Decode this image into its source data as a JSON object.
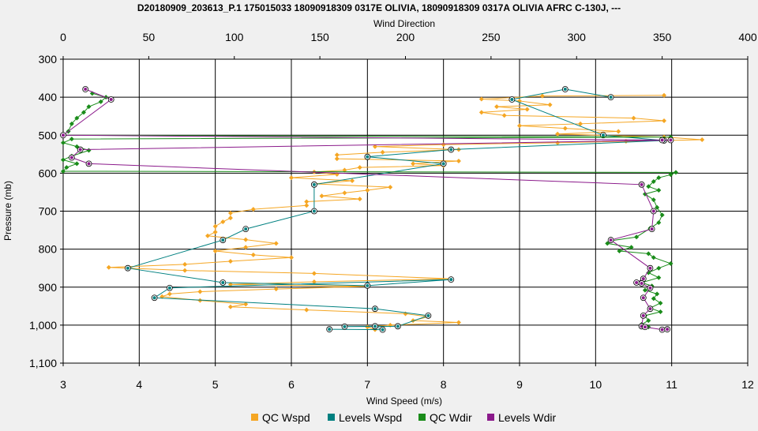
{
  "chart_data": {
    "type": "line",
    "title": "D20180909_203613_P.1 175015033 18090918309 0317E OLIVIA, 18090918309 0317A OLIVIA AFRC C-130J, ---",
    "x_top_label": "Wind Direction",
    "x_bottom_label": "Wind Speed (m/s)",
    "y_label": "Pressure (mb)",
    "x_top_range": [
      0,
      400
    ],
    "x_bottom_range": [
      3,
      12
    ],
    "y_range": [
      300,
      1100
    ],
    "y_inverted": true,
    "grid": true,
    "legend_position": "bottom",
    "x_top_ticks": [
      "0",
      "50",
      "100",
      "150",
      "200",
      "250",
      "300",
      "350",
      "400"
    ],
    "x_bottom_ticks": [
      "3",
      "4",
      "5",
      "6",
      "7",
      "8",
      "9",
      "10",
      "11",
      "12"
    ],
    "y_ticks": [
      "300",
      "400",
      "500",
      "600",
      "700",
      "800",
      "900",
      "1,000",
      "1,100"
    ],
    "series": [
      {
        "name": "QC Wspd",
        "color": "#f5a623",
        "axis": "bottom",
        "marker": "diamond",
        "points": [
          [
            10.9,
            395
          ],
          [
            9.3,
            397
          ],
          [
            8.5,
            405
          ],
          [
            9.0,
            410
          ],
          [
            9.4,
            420
          ],
          [
            8.7,
            425
          ],
          [
            9.1,
            432
          ],
          [
            8.5,
            440
          ],
          [
            8.8,
            448
          ],
          [
            10.5,
            455
          ],
          [
            10.9,
            462
          ],
          [
            9.8,
            470
          ],
          [
            9.0,
            475
          ],
          [
            9.6,
            482
          ],
          [
            10.3,
            490
          ],
          [
            9.5,
            497
          ],
          [
            10.9,
            505
          ],
          [
            11.4,
            512
          ],
          [
            10.4,
            516
          ],
          [
            9.5,
            520
          ],
          [
            8.0,
            525
          ],
          [
            7.1,
            530
          ],
          [
            8.2,
            538
          ],
          [
            7.2,
            545
          ],
          [
            6.6,
            552
          ],
          [
            6.6,
            562
          ],
          [
            8.2,
            568
          ],
          [
            7.6,
            575
          ],
          [
            8.0,
            580
          ],
          [
            6.9,
            585
          ],
          [
            6.7,
            592
          ],
          [
            6.3,
            597
          ],
          [
            6.6,
            603
          ],
          [
            6.0,
            612
          ],
          [
            6.8,
            620
          ],
          [
            6.3,
            628
          ],
          [
            7.3,
            637
          ],
          [
            7.0,
            645
          ],
          [
            6.7,
            652
          ],
          [
            6.4,
            660
          ],
          [
            6.9,
            668
          ],
          [
            6.2,
            675
          ],
          [
            6.2,
            685
          ],
          [
            5.5,
            695
          ],
          [
            5.2,
            705
          ],
          [
            5.2,
            718
          ],
          [
            5.1,
            728
          ],
          [
            5.0,
            740
          ],
          [
            5.0,
            755
          ],
          [
            4.9,
            765
          ],
          [
            5.4,
            775
          ],
          [
            5.8,
            785
          ],
          [
            5.4,
            795
          ],
          [
            5.0,
            805
          ],
          [
            5.5,
            815
          ],
          [
            6.0,
            822
          ],
          [
            5.2,
            832
          ],
          [
            4.6,
            840
          ],
          [
            3.6,
            848
          ],
          [
            4.6,
            856
          ],
          [
            6.3,
            864
          ],
          [
            8.1,
            878
          ],
          [
            6.3,
            886
          ],
          [
            5.2,
            893
          ],
          [
            7.0,
            898
          ],
          [
            5.8,
            905
          ],
          [
            4.8,
            912
          ],
          [
            4.4,
            918
          ],
          [
            4.3,
            925
          ],
          [
            4.8,
            935
          ],
          [
            5.4,
            945
          ],
          [
            5.2,
            952
          ],
          [
            6.2,
            960
          ],
          [
            7.5,
            970
          ],
          [
            7.8,
            978
          ],
          [
            7.6,
            988
          ],
          [
            8.2,
            993
          ],
          [
            7.3,
            1000
          ],
          [
            7.0,
            1005
          ],
          [
            7.1,
            1012
          ]
        ]
      },
      {
        "name": "Levels Wspd",
        "color": "#008080",
        "axis": "bottom",
        "marker": "circle",
        "points": [
          [
            10.2,
            400
          ],
          [
            9.6,
            379
          ],
          [
            8.9,
            406
          ],
          [
            10.1,
            500
          ],
          [
            10.9,
            514
          ],
          [
            8.1,
            538
          ],
          [
            7.0,
            557
          ],
          [
            8.0,
            575
          ],
          [
            6.3,
            630
          ],
          [
            6.3,
            700
          ],
          [
            5.4,
            747
          ],
          [
            5.1,
            776
          ],
          [
            3.85,
            850
          ],
          [
            5.1,
            888
          ],
          [
            7.0,
            896
          ],
          [
            8.1,
            880
          ],
          [
            4.4,
            902
          ],
          [
            4.2,
            928
          ],
          [
            7.1,
            957
          ],
          [
            7.8,
            975
          ],
          [
            7.4,
            1003
          ],
          [
            6.7,
            1004
          ],
          [
            7.1,
            1003
          ],
          [
            7.2,
            1012
          ],
          [
            6.5,
            1011
          ]
        ]
      },
      {
        "name": "QC Wdir",
        "color": "#1a8c1a",
        "axis": "top",
        "marker": "diamond",
        "points": [
          [
            17,
            390
          ],
          [
            25,
            400
          ],
          [
            22,
            412
          ],
          [
            15,
            425
          ],
          [
            12,
            440
          ],
          [
            8,
            455
          ],
          [
            5,
            470
          ],
          [
            3,
            490
          ],
          [
            0,
            500
          ],
          [
            355,
            505
          ],
          [
            5,
            510
          ],
          [
            0,
            520
          ],
          [
            8,
            530
          ],
          [
            15,
            540
          ],
          [
            5,
            555
          ],
          [
            0,
            565
          ],
          [
            8,
            575
          ],
          [
            2,
            585
          ],
          [
            0,
            595
          ],
          [
            358,
            598
          ],
          [
            355,
            604
          ],
          [
            348,
            612
          ],
          [
            345,
            622
          ],
          [
            342,
            635
          ],
          [
            348,
            645
          ],
          [
            340,
            655
          ],
          [
            345,
            670
          ],
          [
            347,
            690
          ],
          [
            350,
            710
          ],
          [
            348,
            730
          ],
          [
            343,
            745
          ],
          [
            335,
            768
          ],
          [
            320,
            778
          ],
          [
            318,
            785
          ],
          [
            332,
            795
          ],
          [
            325,
            805
          ],
          [
            342,
            812
          ],
          [
            345,
            822
          ],
          [
            355,
            838
          ],
          [
            348,
            850
          ],
          [
            342,
            862
          ],
          [
            348,
            875
          ],
          [
            338,
            888
          ],
          [
            344,
            897
          ],
          [
            340,
            908
          ],
          [
            347,
            918
          ],
          [
            345,
            930
          ],
          [
            349,
            942
          ],
          [
            343,
            955
          ],
          [
            349,
            965
          ],
          [
            340,
            975
          ],
          [
            342,
            988
          ],
          [
            338,
            998
          ],
          [
            342,
            1005
          ]
        ]
      },
      {
        "name": "Levels Wdir",
        "color": "#8b1a8b",
        "axis": "top",
        "marker": "circle",
        "points": [
          [
            13,
            379
          ],
          [
            28,
            406
          ],
          [
            0,
            500
          ],
          [
            350,
            513
          ],
          [
            355,
            513
          ],
          [
            10,
            538
          ],
          [
            5,
            559
          ],
          [
            15,
            575
          ],
          [
            338,
            630
          ],
          [
            345,
            700
          ],
          [
            344,
            747
          ],
          [
            320,
            776
          ],
          [
            343,
            850
          ],
          [
            339,
            878
          ],
          [
            335,
            888
          ],
          [
            338,
            890
          ],
          [
            343,
            902
          ],
          [
            339,
            928
          ],
          [
            343,
            957
          ],
          [
            339,
            975
          ],
          [
            338,
            1003
          ],
          [
            340,
            1005
          ],
          [
            350,
            1012
          ],
          [
            353,
            1011
          ]
        ]
      }
    ]
  }
}
